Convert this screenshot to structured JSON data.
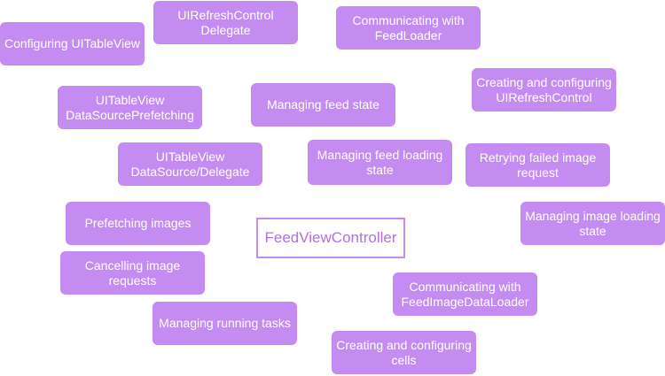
{
  "diagram": {
    "center": "FeedViewController",
    "responsibilities": [
      "Configuring UITableView",
      "UIRefreshControl\nDelegate",
      "Communicating with\nFeedLoader",
      "Creating and configuring\nUIRefreshControl",
      "UITableView\nDataSourcePrefetching",
      "Managing feed state",
      "UITableView\nDataSource/Delegate",
      "Managing feed loading\nstate",
      "Retrying failed image\nrequest",
      "Prefetching images",
      "Managing image loading\nstate",
      "Cancelling image\nrequests",
      "Communicating with\nFeedImageDataLoader",
      "Managing running tasks",
      "Creating and configuring\ncells"
    ]
  },
  "colors": {
    "bubble_fill": "#c48cf0",
    "bubble_text": "#ffffff",
    "center_border": "#c48cf0",
    "center_text": "#b46ee8"
  }
}
